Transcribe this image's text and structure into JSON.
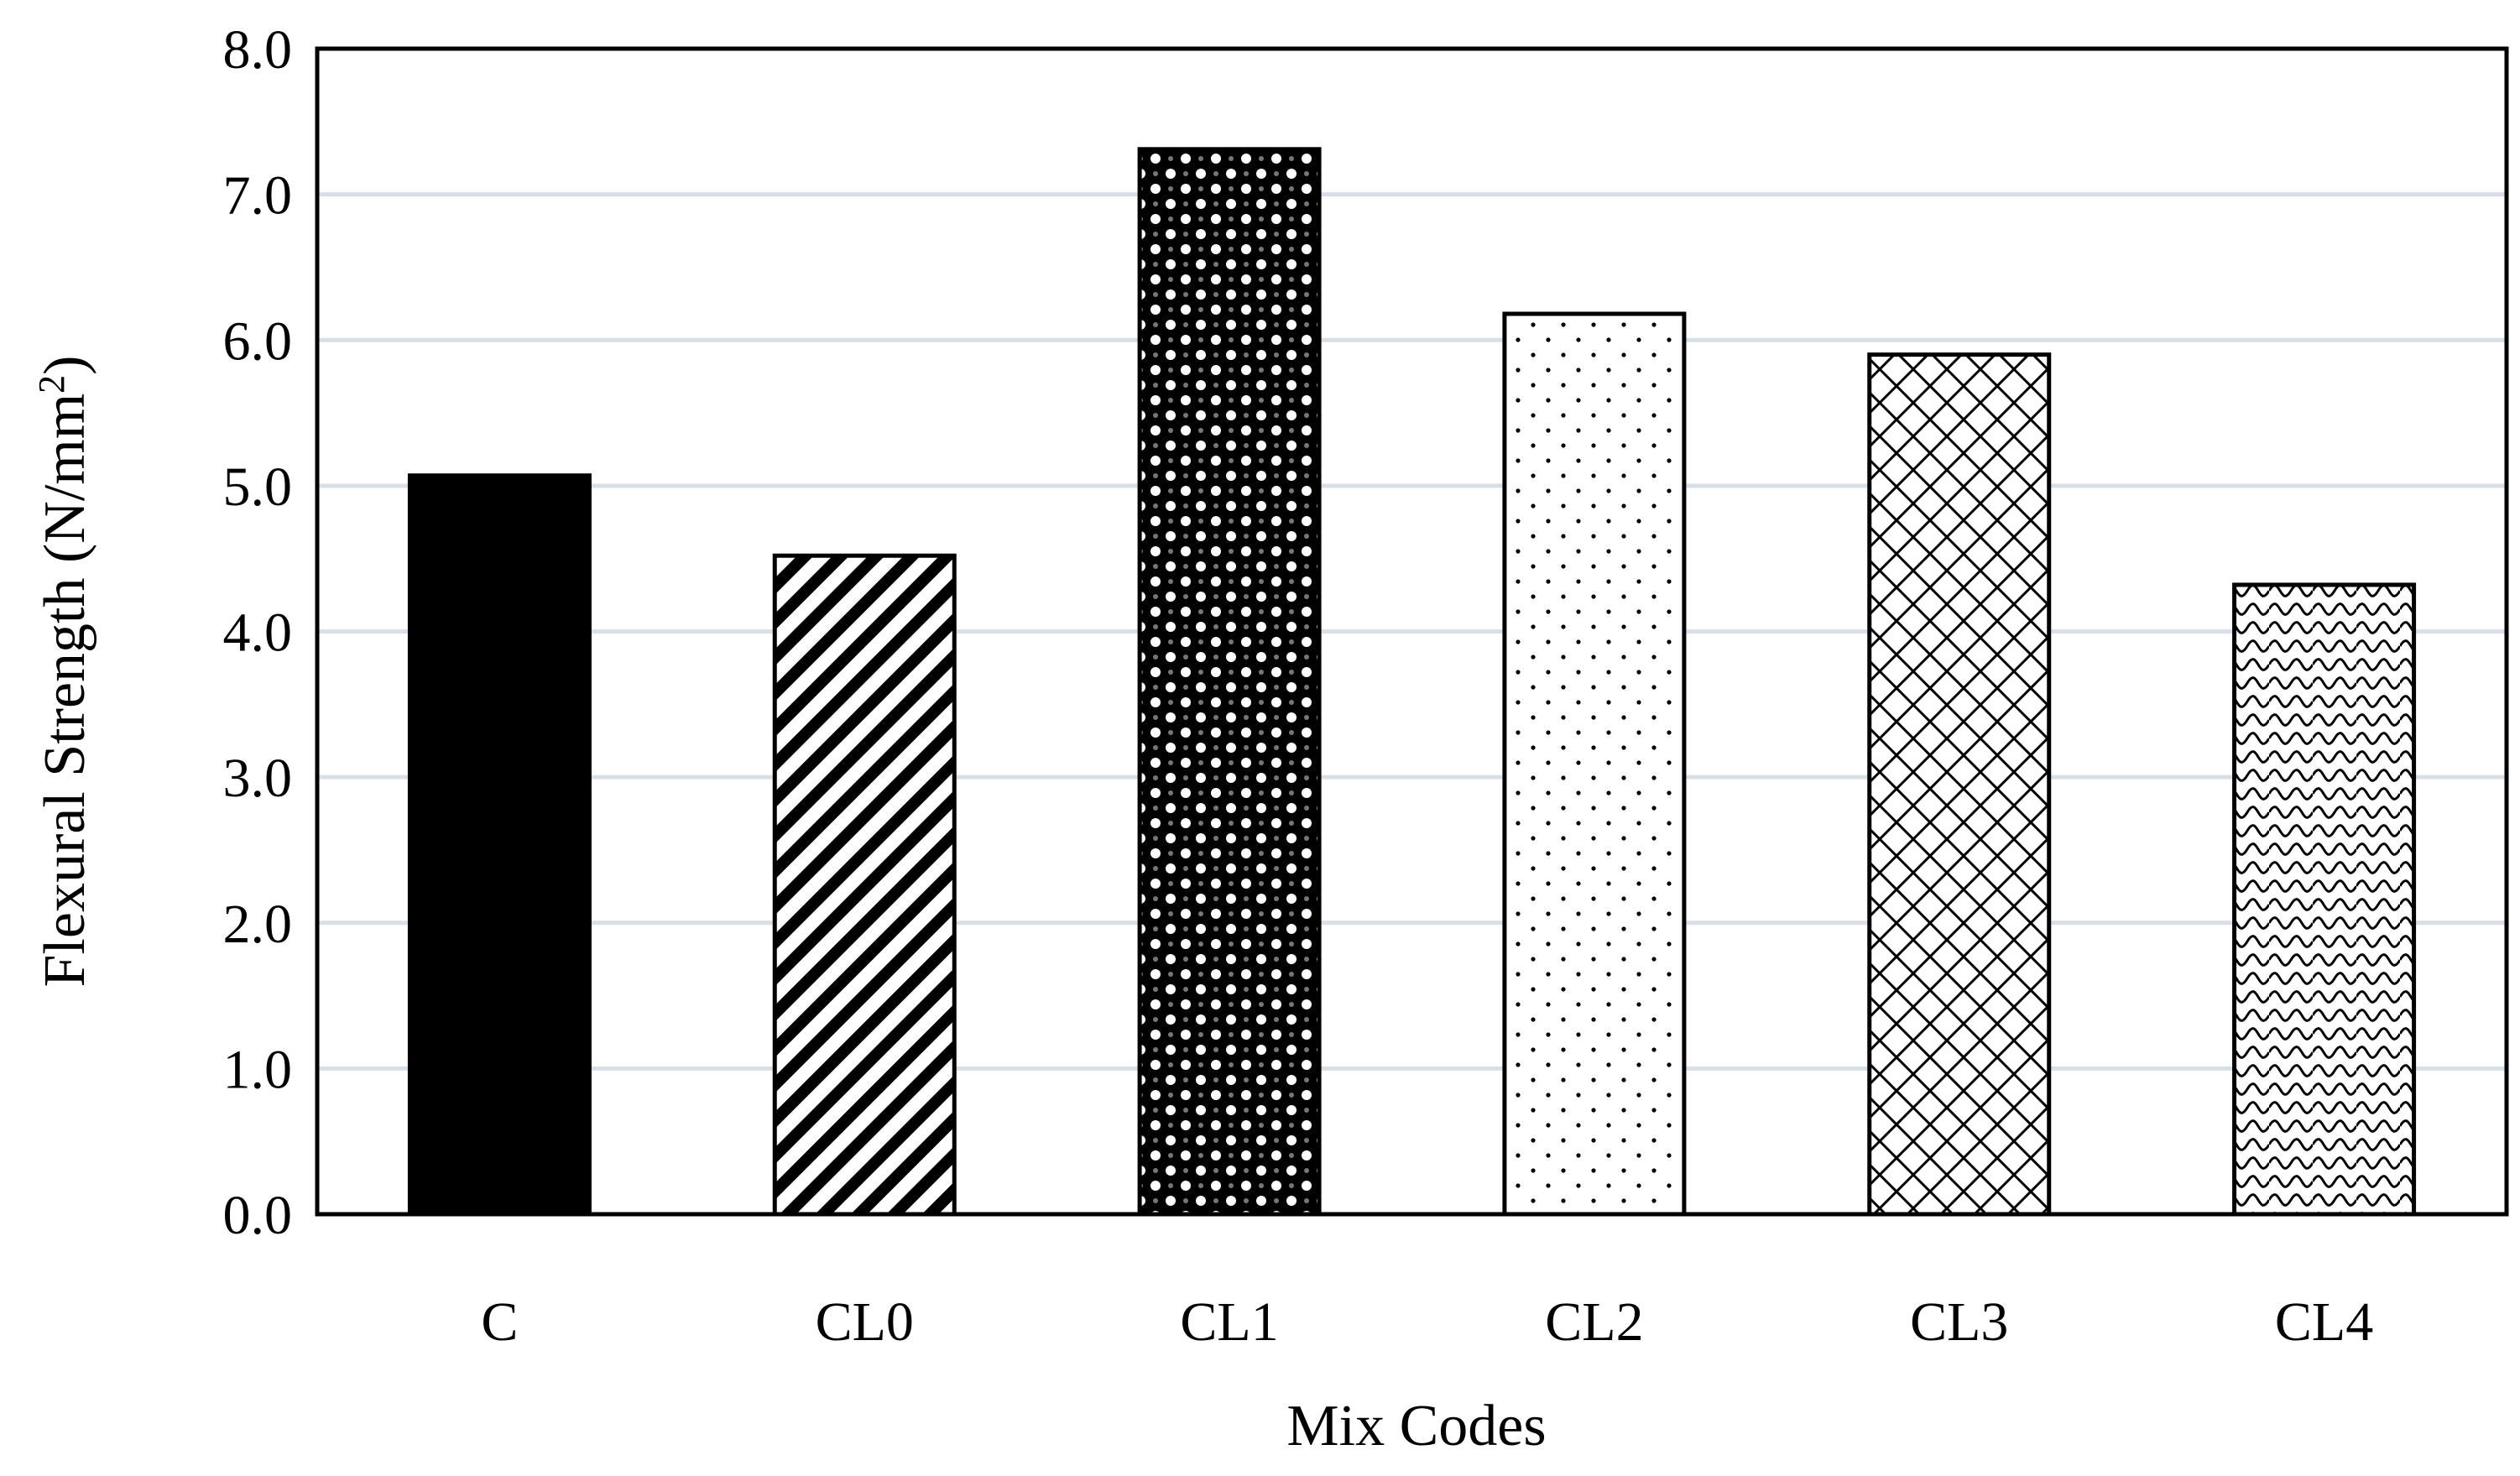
{
  "chart_data": {
    "type": "bar",
    "categories": [
      "C",
      "CL0",
      "CL1",
      "CL2",
      "CL3",
      "CL4"
    ],
    "values": [
      5.07,
      4.52,
      7.31,
      6.18,
      5.9,
      4.32
    ],
    "patterns": [
      "solid",
      "diagonal-stripes",
      "dark-checker-dots",
      "sparse-dots",
      "diamond-crosshatch",
      "wave-scales"
    ],
    "title": "",
    "xlabel": "Mix Codes",
    "ylabel_main": "Flexural Strength (N/mm",
    "ylabel_sup": "2",
    "ylabel_close": ")",
    "ylim": [
      0,
      8
    ],
    "yticks": [
      "0.0",
      "1.0",
      "2.0",
      "3.0",
      "4.0",
      "5.0",
      "6.0",
      "7.0",
      "8.0"
    ],
    "grid": true,
    "colors": {
      "bar_fill": "#000000",
      "gridline": "#d9dfe6",
      "background": "#ffffff"
    }
  }
}
